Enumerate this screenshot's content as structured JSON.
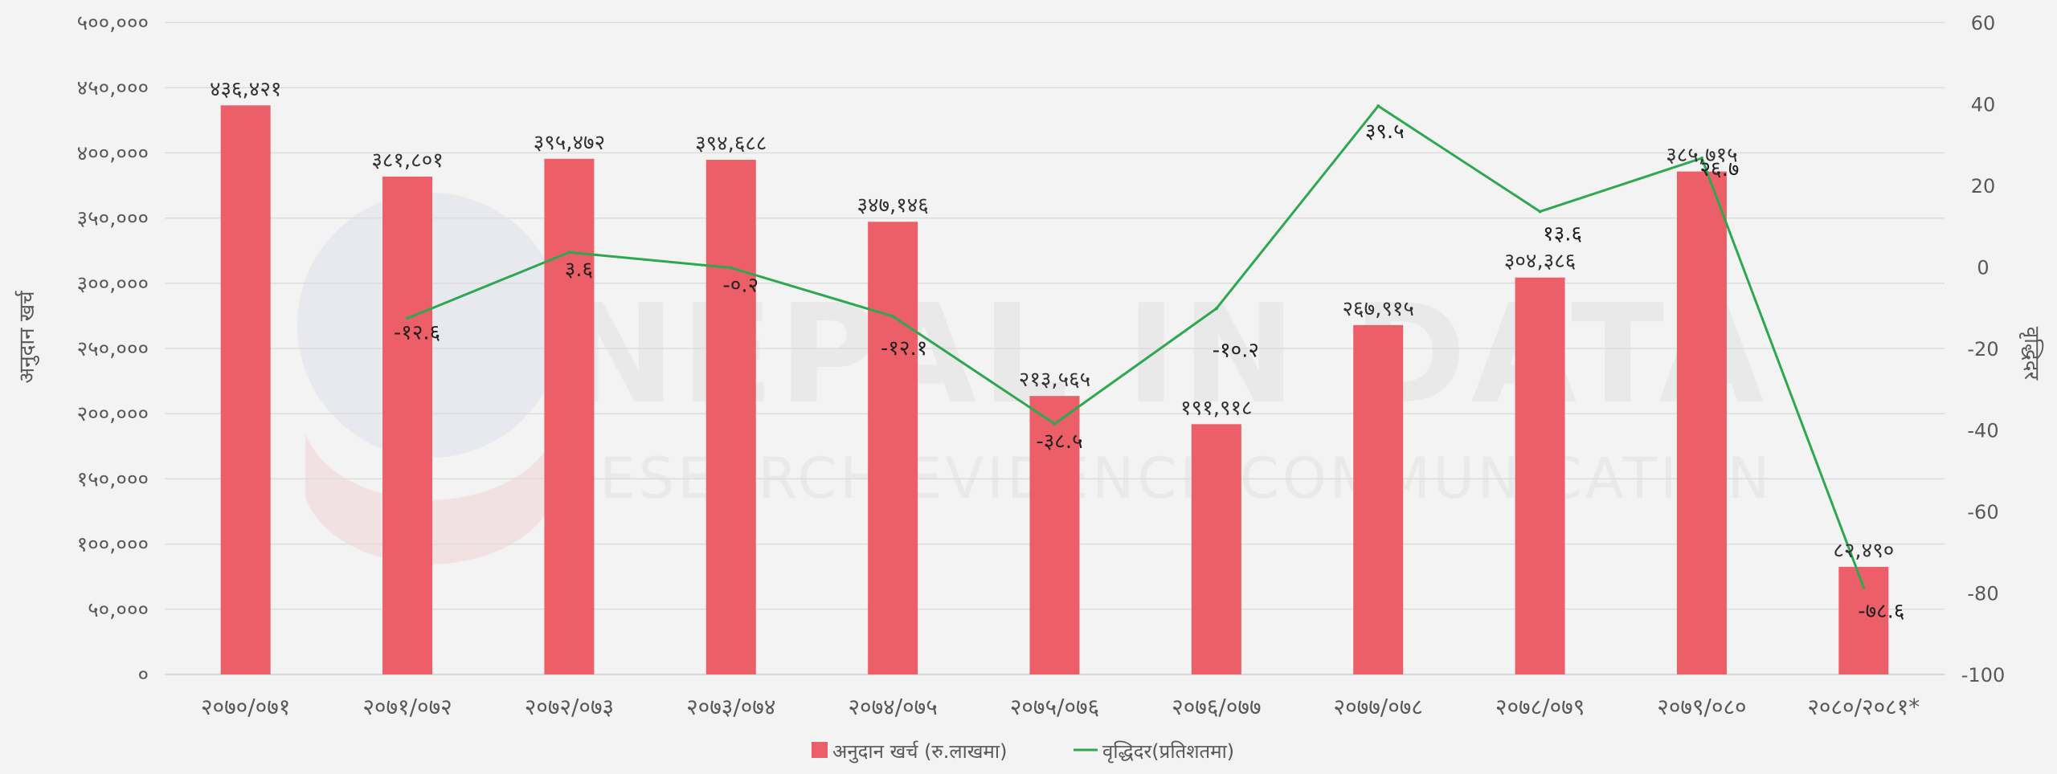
{
  "watermark": {
    "title": "NEPAL IN DATA",
    "subtitle": "RESEARCH EVIDENCE COMMUNICATION"
  },
  "colors": {
    "bar": "#ed5f68",
    "line": "#2ea84f",
    "background": "#f3f3f3",
    "grid": "#dcdcdc",
    "text": "#595959"
  },
  "chart_data": {
    "type": "bar",
    "categories": [
      "२०७०/०७१",
      "२०७१/०७२",
      "२०७२/०७३",
      "२०७३/०७४",
      "२०७४/०७५",
      "२०७५/०७६",
      "२०७६/०७७",
      "२०७७/०७८",
      "२०७८/०७९",
      "२०७९/०८०",
      "२०८०/२०८१*"
    ],
    "series": [
      {
        "name": "अनुदान खर्च (रु.लाखमा)",
        "type": "bar",
        "axis": "left",
        "values": [
          436421,
          381801,
          395472,
          394688,
          347146,
          213565,
          191918,
          267915,
          304386,
          385715,
          82490
        ],
        "labels": [
          "४३६,४२१",
          "३८१,८०१",
          "३९५,४७२",
          "३९४,६८८",
          "३४७,१४६",
          "२१३,५६५",
          "१९१,९१८",
          "२६७,९१५",
          "३०४,३८६",
          "३८५,७१५",
          "८२,४९०"
        ]
      },
      {
        "name": "वृद्धिदर(प्रतिशतमा)",
        "type": "line",
        "axis": "right",
        "values": [
          null,
          -12.6,
          3.6,
          -0.2,
          -12.1,
          -38.5,
          -10.2,
          39.5,
          13.6,
          26.7,
          -78.6
        ],
        "labels": [
          "",
          "-१२.६",
          "३.६",
          "-०.२",
          "-१२.१",
          "-३८.५",
          "-१०.२",
          "३९.५",
          "१३.६",
          "२६.७",
          "-७८.६"
        ]
      }
    ],
    "ylabel": "अनुदान खर्च",
    "y2label": "वृद्धिदर",
    "ylim": [
      0,
      500000
    ],
    "y2lim": [
      -100,
      60
    ],
    "yticks": [
      0,
      50000,
      100000,
      150000,
      200000,
      250000,
      300000,
      350000,
      400000,
      450000,
      500000
    ],
    "ytick_labels": [
      "०",
      "५०,०००",
      "१००,०००",
      "१५०,०००",
      "२००,०००",
      "२५०,०००",
      "३००,०००",
      "३५०,०००",
      "४००,०००",
      "४५०,०००",
      "५००,०००"
    ],
    "y2ticks": [
      -100,
      -80,
      -60,
      -40,
      -20,
      0,
      20,
      40,
      60
    ],
    "y2tick_labels": [
      "-100",
      "-80",
      "-60",
      "-40",
      "-20",
      "0",
      "20",
      "40",
      "60"
    ],
    "grid": true,
    "legend_position": "bottom"
  }
}
